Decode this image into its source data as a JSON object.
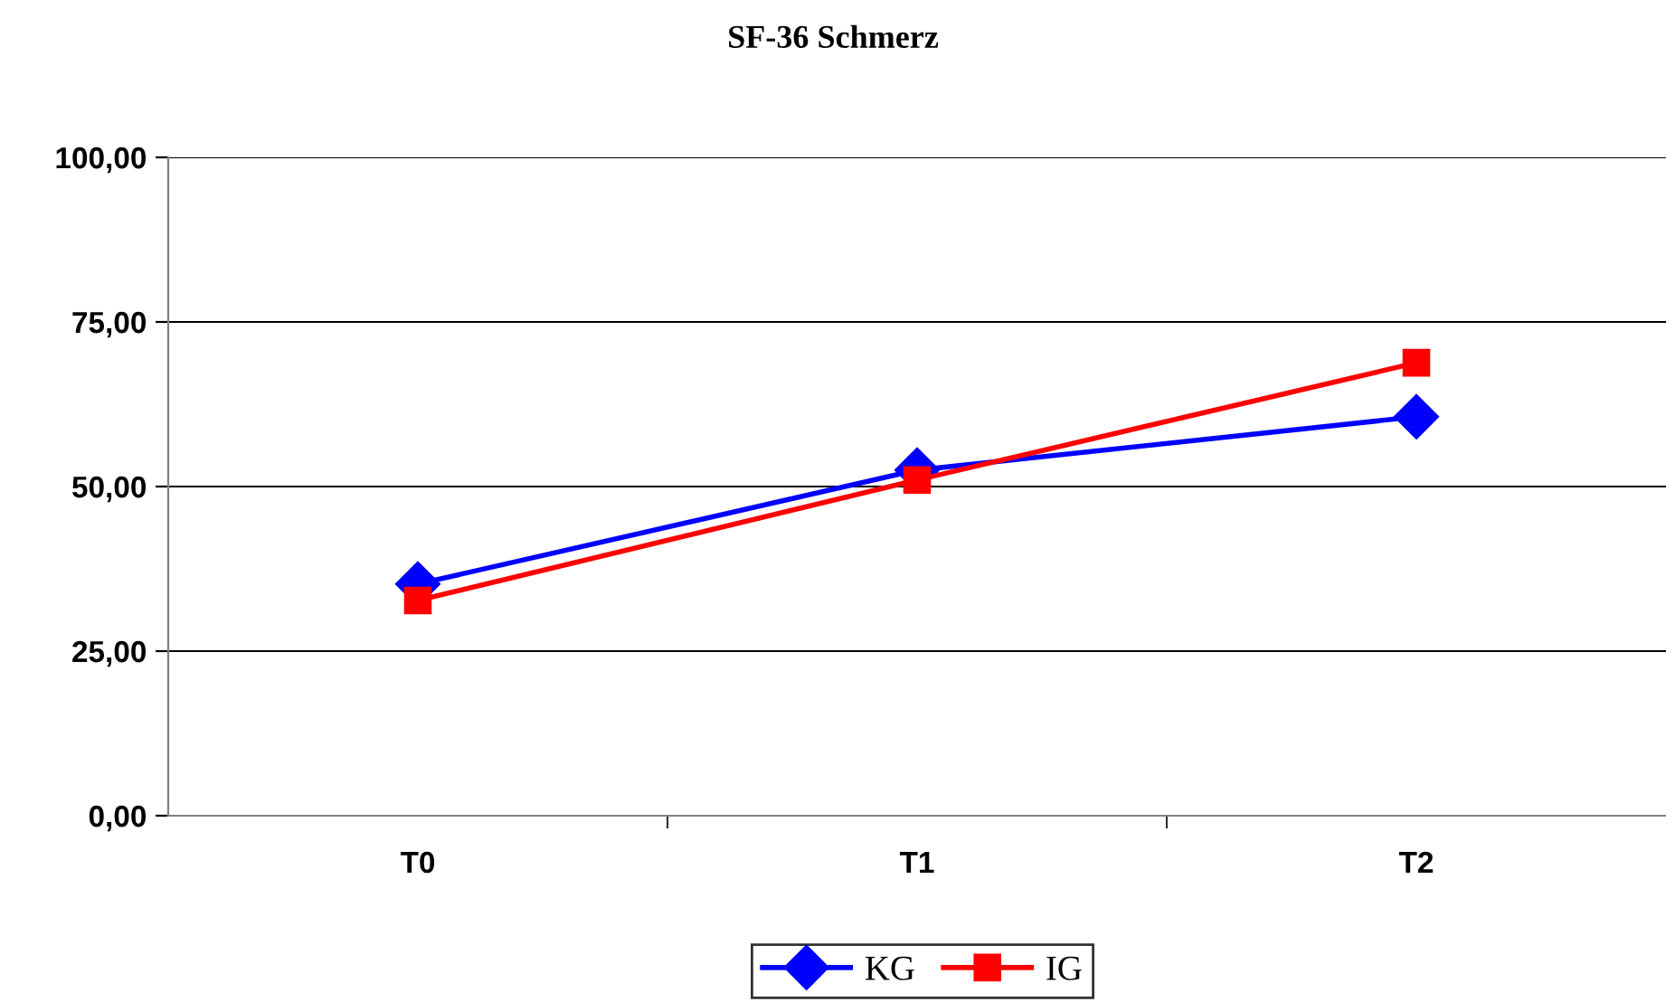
{
  "chart_data": {
    "type": "line",
    "title": "SF-36 Schmerz",
    "categories": [
      "T0",
      "T1",
      "T2"
    ],
    "series": [
      {
        "name": "KG",
        "color": "#0000ff",
        "marker": "diamond",
        "values": [
          35.2,
          52.5,
          60.6
        ]
      },
      {
        "name": "IG",
        "color": "#ff0000",
        "marker": "square",
        "values": [
          32.7,
          51.0,
          68.8
        ]
      }
    ],
    "ylim": [
      0,
      100
    ],
    "yticks": [
      {
        "value": 0,
        "label": "0,00"
      },
      {
        "value": 25,
        "label": "25,00"
      },
      {
        "value": 50,
        "label": "50,00"
      },
      {
        "value": 75,
        "label": "75,00"
      },
      {
        "value": 100,
        "label": "100,00"
      }
    ],
    "grid": "y",
    "legend": "bottom",
    "line_style": "solid"
  }
}
